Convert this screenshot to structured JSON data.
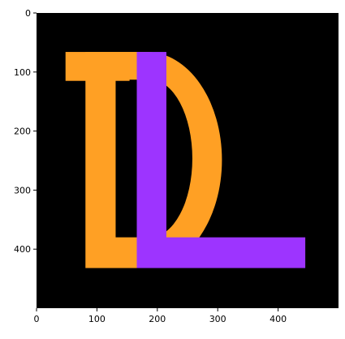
{
  "chart_data": {
    "type": "image",
    "title": "",
    "xlabel": "",
    "ylabel": "",
    "xlim": [
      0,
      500
    ],
    "ylim": [
      500,
      0
    ],
    "grid": false,
    "background_color": "#000000",
    "x_ticks": [
      "0",
      "100",
      "200",
      "300",
      "400"
    ],
    "y_ticks": [
      "0",
      "100",
      "200",
      "300",
      "400"
    ],
    "x_tick_values": [
      0,
      100,
      200,
      300,
      400
    ],
    "y_tick_values": [
      0,
      100,
      200,
      300,
      400
    ],
    "letters": [
      {
        "letter": "D",
        "color": "#ffa024",
        "serif": [
          [
            48,
            66
          ],
          [
            154,
            115
          ]
        ],
        "stem": [
          [
            81,
            66
          ],
          [
            154,
            432
          ]
        ],
        "bowl_outer": {
          "x": [
            81,
            307
          ],
          "y": [
            66,
            432
          ]
        },
        "bowl_inner": {
          "x": [
            131,
            258
          ],
          "y": [
            113,
            380
          ]
        }
      },
      {
        "letter": "L",
        "color": "#9d34ff",
        "stem": [
          [
            166,
            66
          ],
          [
            215,
            432
          ]
        ],
        "bar": [
          [
            166,
            380
          ],
          [
            445,
            432
          ]
        ]
      }
    ]
  }
}
